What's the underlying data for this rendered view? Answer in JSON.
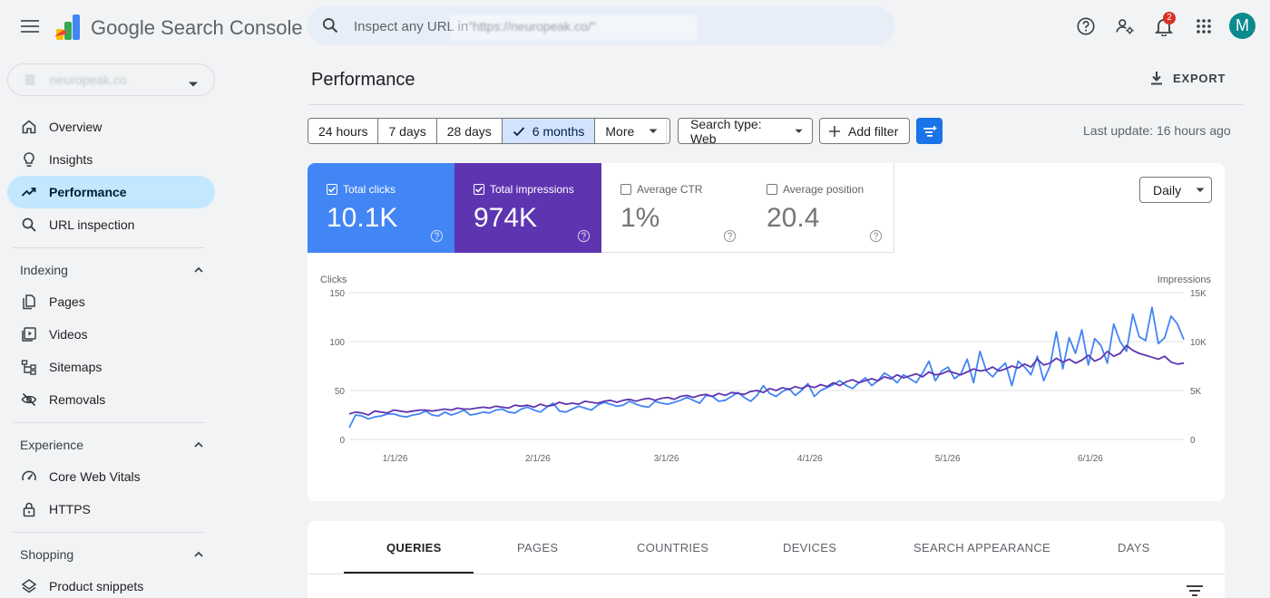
{
  "header": {
    "app_title": "Google Search Console",
    "search_placeholder": "Inspect any URL in",
    "search_ghost": "\"https://neuropeak.co/\"",
    "notification_count": "2",
    "avatar_letter": "M"
  },
  "sidebar": {
    "property": "neuropeak.co",
    "items": [
      {
        "label": "Overview",
        "icon": "home-icon"
      },
      {
        "label": "Insights",
        "icon": "lightbulb-icon"
      },
      {
        "label": "Performance",
        "icon": "trending-up-icon",
        "active": true
      },
      {
        "label": "URL inspection",
        "icon": "search-icon"
      }
    ],
    "indexing": {
      "heading": "Indexing",
      "items": [
        {
          "label": "Pages",
          "icon": "pages-icon"
        },
        {
          "label": "Videos",
          "icon": "video-icon"
        },
        {
          "label": "Sitemaps",
          "icon": "sitemap-icon"
        },
        {
          "label": "Removals",
          "icon": "eye-off-icon"
        }
      ]
    },
    "experience": {
      "heading": "Experience",
      "items": [
        {
          "label": "Core Web Vitals",
          "icon": "speed-icon"
        },
        {
          "label": "HTTPS",
          "icon": "lock-icon"
        }
      ]
    },
    "shopping": {
      "heading": "Shopping",
      "items": [
        {
          "label": "Product snippets",
          "icon": "layers-icon"
        }
      ]
    }
  },
  "main": {
    "title": "Performance",
    "export_label": "EXPORT",
    "ranges": [
      "24 hours",
      "7 days",
      "28 days",
      "6 months",
      "More"
    ],
    "selected_range": "6 months",
    "search_type": "Search type: Web",
    "add_filter": "Add filter",
    "last_update": "Last update: 16 hours ago",
    "granularity": "Daily",
    "metrics": [
      {
        "label": "Total clicks",
        "value": "10.1K",
        "checked": true,
        "color": "#4285f4"
      },
      {
        "label": "Total impressions",
        "value": "974K",
        "checked": true,
        "color": "#5e35b1"
      },
      {
        "label": "Average CTR",
        "value": "1%",
        "checked": false
      },
      {
        "label": "Average position",
        "value": "20.4",
        "checked": false
      }
    ],
    "tabs": [
      "QUERIES",
      "PAGES",
      "COUNTRIES",
      "DEVICES",
      "SEARCH APPEARANCE",
      "DAYS"
    ],
    "selected_tab": "QUERIES"
  },
  "chart_data": {
    "type": "line",
    "left_axis_label": "Clicks",
    "right_axis_label": "Impressions",
    "left_ticks": [
      "150",
      "100",
      "50",
      "0"
    ],
    "right_ticks": [
      "15K",
      "10K",
      "5K",
      "0"
    ],
    "ylim_left": [
      0,
      150
    ],
    "ylim_right": [
      0,
      15000
    ],
    "x_ticks": [
      "1/1/26",
      "2/1/26",
      "3/1/26",
      "4/1/26",
      "5/1/26",
      "6/1/26"
    ],
    "grid": true,
    "series": [
      {
        "name": "Clicks",
        "axis": "left",
        "color": "#4285f4",
        "values": [
          12,
          25,
          24,
          21,
          23,
          24,
          26,
          26,
          24,
          23,
          25,
          26,
          29,
          25,
          24,
          28,
          25,
          27,
          30,
          25,
          26,
          28,
          27,
          30,
          31,
          28,
          27,
          31,
          33,
          30,
          28,
          33,
          37,
          29,
          28,
          31,
          34,
          32,
          30,
          35,
          38,
          36,
          34,
          35,
          39,
          36,
          34,
          33,
          39,
          37,
          36,
          38,
          40,
          43,
          40,
          37,
          45,
          44,
          39,
          40,
          44,
          48,
          43,
          39,
          45,
          55,
          47,
          44,
          49,
          52,
          45,
          50,
          57,
          44,
          50,
          53,
          56,
          60,
          55,
          52,
          58,
          63,
          55,
          60,
          68,
          64,
          58,
          66,
          62,
          58,
          68,
          80,
          60,
          70,
          74,
          62,
          67,
          82,
          58,
          90,
          70,
          64,
          72,
          78,
          55,
          80,
          74,
          66,
          85,
          60,
          75,
          110,
          72,
          104,
          88,
          112,
          76,
          103,
          96,
          78,
          118,
          100,
          90,
          128,
          105,
          101,
          135,
          98,
          104,
          126,
          118,
          102
        ]
      },
      {
        "name": "Impressions",
        "axis": "right",
        "color": "#5e35b1",
        "values": [
          2600,
          2800,
          2700,
          2500,
          2900,
          2800,
          2700,
          3000,
          2900,
          2800,
          2900,
          3000,
          3000,
          2900,
          3000,
          3100,
          3000,
          3200,
          3100,
          3100,
          3200,
          3300,
          3200,
          3400,
          3300,
          3200,
          3500,
          3400,
          3500,
          3300,
          3600,
          3400,
          3500,
          3800,
          3600,
          3700,
          3600,
          3900,
          3800,
          3700,
          3900,
          4000,
          3800,
          4000,
          4100,
          3900,
          4100,
          4200,
          4000,
          4200,
          4300,
          4100,
          4400,
          4500,
          4300,
          4500,
          4600,
          4400,
          4700,
          4500,
          4800,
          4700,
          4600,
          4900,
          5000,
          4800,
          5200,
          5000,
          5300,
          5100,
          5400,
          5200,
          5500,
          5300,
          5600,
          5400,
          5800,
          5500,
          5900,
          6100,
          5800,
          6000,
          6200,
          6000,
          6400,
          6200,
          6600,
          6300,
          6500,
          6700,
          6400,
          6900,
          6600,
          6700,
          7000,
          6800,
          6600,
          6900,
          7200,
          7000,
          7100,
          7400,
          7000,
          7200,
          7500,
          7300,
          7700,
          7400,
          8200,
          7600,
          7800,
          8300,
          7900,
          8200,
          7800,
          8100,
          8600,
          8000,
          8300,
          9000,
          8500,
          8800,
          9600,
          9100,
          8800,
          8600,
          8400,
          8200,
          8500,
          7900,
          7700,
          7800
        ]
      }
    ]
  }
}
